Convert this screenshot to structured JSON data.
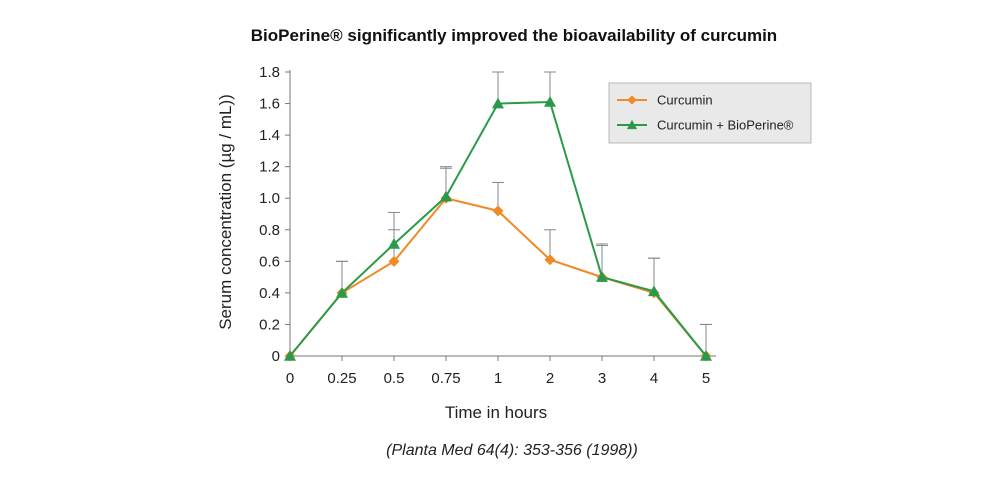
{
  "chart_data": {
    "type": "line",
    "title": "BioPerine® significantly improved the bioavailability of curcumin",
    "xlabel": "Time in hours",
    "ylabel": "Serum concentration (µg / mL))",
    "x": [
      "0",
      "0.25",
      "0.5",
      "0.75",
      "1",
      "2",
      "3",
      "4",
      "5"
    ],
    "ylim": [
      0,
      1.8
    ],
    "yticks": [
      "0",
      "0.2",
      "0.4",
      "0.6",
      "0.8",
      "1.0",
      "1.2",
      "1.4",
      "1.6",
      "1.8"
    ],
    "series": [
      {
        "name": "Curcumin",
        "color": "#f08a24",
        "marker": "diamond",
        "values": [
          0,
          0.4,
          0.6,
          1.0,
          0.92,
          0.61,
          0.5,
          0.4,
          0
        ],
        "error_upper": [
          0,
          0.6,
          0.8,
          1.2,
          1.1,
          0.8,
          0.7,
          0.62,
          0.2
        ]
      },
      {
        "name": "Curcumin + BioPerine®",
        "color": "#2a9a4a",
        "marker": "triangle",
        "values": [
          0,
          0.4,
          0.71,
          1.01,
          1.6,
          1.61,
          0.5,
          0.41,
          0
        ],
        "error_upper": [
          0,
          0.6,
          0.91,
          1.19,
          1.8,
          1.8,
          0.71,
          0.62,
          0.2
        ]
      }
    ],
    "legend_position": "top-right",
    "grid": false,
    "source": "(Planta Med 64(4): 353-356 (1998))"
  }
}
